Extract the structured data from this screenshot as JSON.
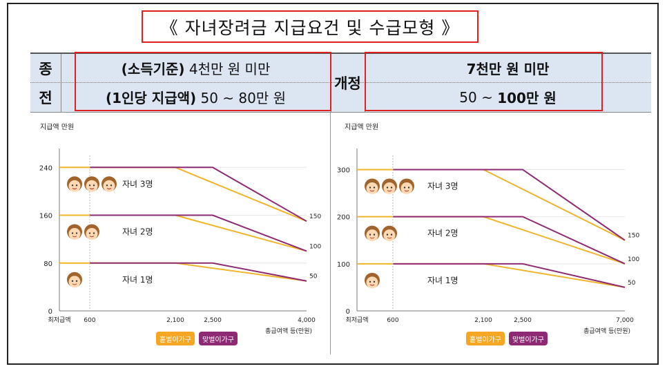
{
  "title": "《 자녀장려금 지급요건 및 수급모형 》",
  "table": {
    "old_label_1": "종",
    "old_label_2": "전",
    "old_row1_bold": "(소득기준)",
    "old_row1_text": " 4천만 원 미만",
    "old_row2_bold": "(1인당 지급액)",
    "old_row2_text": " 50 ~ 80만 원",
    "new_label": "개정",
    "new_row1": "7천만 원 미만",
    "new_row2_plain": "50 ~ ",
    "new_row2_bold": "100만 원"
  },
  "colors": {
    "orange_line": "#f0b429",
    "purple_line": "#8e2a73",
    "single": "#f5a623",
    "dual": "#8e2a73"
  },
  "legend": {
    "single": "홑벌이가구",
    "dual": "맞벌이가구"
  },
  "chart_data": [
    {
      "type": "line",
      "ylabel": "지급액 만원",
      "xlabel": "총급여액 등(만원)",
      "y_ticks": [
        "0",
        "80",
        "160",
        "240"
      ],
      "ylim": [
        0,
        260
      ],
      "x_ticks": [
        "최저급액",
        "600",
        "2,100",
        "2,500",
        "4,000"
      ],
      "right_labels": [
        "150",
        "100",
        "50"
      ],
      "series": [
        {
          "name": "자녀 3명",
          "kind": "single",
          "x": [
            0,
            2100,
            4000
          ],
          "y": [
            240,
            240,
            150
          ]
        },
        {
          "name": "자녀 3명",
          "kind": "dual",
          "x": [
            600,
            2500,
            4000
          ],
          "y": [
            240,
            240,
            150
          ]
        },
        {
          "name": "자녀 2명",
          "kind": "single",
          "x": [
            0,
            2100,
            4000
          ],
          "y": [
            160,
            160,
            100
          ]
        },
        {
          "name": "자녀 2명",
          "kind": "dual",
          "x": [
            600,
            2500,
            4000
          ],
          "y": [
            160,
            160,
            100
          ]
        },
        {
          "name": "자녀 1명",
          "kind": "single",
          "x": [
            0,
            2100,
            4000
          ],
          "y": [
            80,
            80,
            50
          ]
        },
        {
          "name": "자녀 1명",
          "kind": "dual",
          "x": [
            600,
            2500,
            4000
          ],
          "y": [
            80,
            80,
            50
          ]
        }
      ],
      "child_labels": [
        "자녀 3명",
        "자녀 2명",
        "자녀 1명"
      ]
    },
    {
      "type": "line",
      "ylabel": "지급액 만원",
      "xlabel": "총급여액 등(만원)",
      "y_ticks": [
        "0",
        "100",
        "200",
        "300"
      ],
      "ylim": [
        0,
        330
      ],
      "x_ticks": [
        "최저급액",
        "600",
        "2,100",
        "2,500",
        "7,000"
      ],
      "right_labels": [
        "150",
        "100",
        "50"
      ],
      "series": [
        {
          "name": "자녀 3명",
          "kind": "single",
          "x": [
            0,
            2100,
            7000
          ],
          "y": [
            300,
            300,
            150
          ]
        },
        {
          "name": "자녀 3명",
          "kind": "dual",
          "x": [
            600,
            2500,
            7000
          ],
          "y": [
            300,
            300,
            150
          ]
        },
        {
          "name": "자녀 2명",
          "kind": "single",
          "x": [
            0,
            2100,
            7000
          ],
          "y": [
            200,
            200,
            100
          ]
        },
        {
          "name": "자녀 2명",
          "kind": "dual",
          "x": [
            600,
            2500,
            7000
          ],
          "y": [
            200,
            200,
            100
          ]
        },
        {
          "name": "자녀 1명",
          "kind": "single",
          "x": [
            0,
            2100,
            7000
          ],
          "y": [
            100,
            100,
            50
          ]
        },
        {
          "name": "자녀 1명",
          "kind": "dual",
          "x": [
            600,
            2500,
            7000
          ],
          "y": [
            100,
            100,
            50
          ]
        }
      ],
      "child_labels": [
        "자녀 3명",
        "자녀 2명",
        "자녀 1명"
      ]
    }
  ]
}
